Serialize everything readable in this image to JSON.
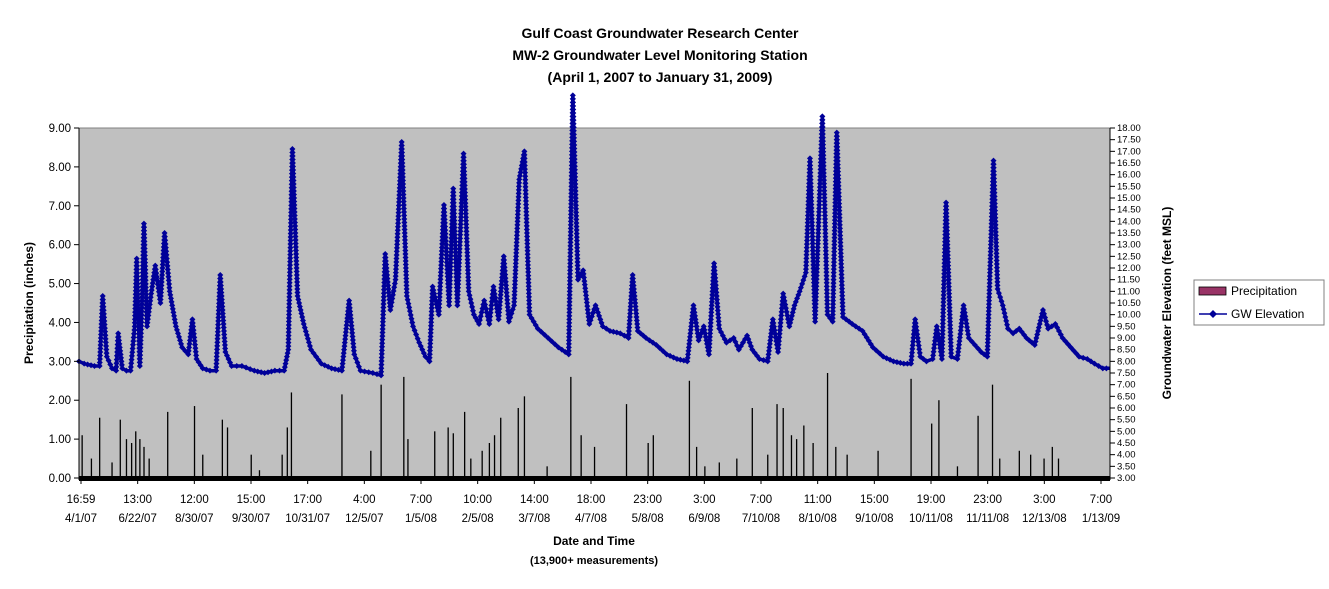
{
  "chart_data": {
    "type": "line",
    "title_lines": [
      "Gulf Coast Groundwater Research Center",
      "MW-2 Groundwater Level Monitoring Station",
      "(April 1, 2007 to January 31, 2009)"
    ],
    "xlabel": "Date and Time",
    "xlabel_sub": "(13,900+ measurements)",
    "ylabel_left": "Precipitation (inches)",
    "ylabel_right": "Groundwater Elevation (feet MSL)",
    "ylim_left": [
      0,
      9
    ],
    "ylim_right": [
      3,
      18
    ],
    "y_ticks_left": [
      "0.00",
      "1.00",
      "2.00",
      "3.00",
      "4.00",
      "5.00",
      "6.00",
      "7.00",
      "8.00",
      "9.00"
    ],
    "y_ticks_right": [
      "3.00",
      "3.50",
      "4.00",
      "4.50",
      "5.00",
      "5.50",
      "6.00",
      "6.50",
      "7.00",
      "7.50",
      "8.00",
      "8.50",
      "9.00",
      "9.50",
      "10.00",
      "10.50",
      "11.00",
      "11.50",
      "12.00",
      "12.50",
      "13.00",
      "13.50",
      "14.00",
      "14.50",
      "15.00",
      "15.50",
      "16.00",
      "16.50",
      "17.00",
      "17.50",
      "18.00"
    ],
    "x_ticks": [
      {
        "time": "16:59",
        "date": "4/1/07"
      },
      {
        "time": "13:00",
        "date": "6/22/07"
      },
      {
        "time": "12:00",
        "date": "8/30/07"
      },
      {
        "time": "15:00",
        "date": "9/30/07"
      },
      {
        "time": "17:00",
        "date": "10/31/07"
      },
      {
        "time": "4:00",
        "date": "12/5/07"
      },
      {
        "time": "7:00",
        "date": "1/5/08"
      },
      {
        "time": "10:00",
        "date": "2/5/08"
      },
      {
        "time": "14:00",
        "date": "3/7/08"
      },
      {
        "time": "18:00",
        "date": "4/7/08"
      },
      {
        "time": "23:00",
        "date": "5/8/08"
      },
      {
        "time": "3:00",
        "date": "6/9/08"
      },
      {
        "time": "7:00",
        "date": "7/10/08"
      },
      {
        "time": "11:00",
        "date": "8/10/08"
      },
      {
        "time": "15:00",
        "date": "9/10/08"
      },
      {
        "time": "19:00",
        "date": "10/11/08"
      },
      {
        "time": "23:00",
        "date": "11/11/08"
      },
      {
        "time": "3:00",
        "date": "12/13/08"
      },
      {
        "time": "7:00",
        "date": "1/13/09"
      }
    ],
    "legend_position": "right",
    "grid": false,
    "plot_background": "#c0c0c0",
    "series": [
      {
        "name": "Precipitation",
        "axis": "left",
        "kind": "bar",
        "color": "#000000",
        "legend_color": "#993366",
        "points": [
          [
            0.3,
            1.1
          ],
          [
            1.2,
            0.5
          ],
          [
            2.0,
            1.55
          ],
          [
            3.2,
            0.4
          ],
          [
            4.0,
            1.5
          ],
          [
            4.6,
            1.0
          ],
          [
            5.1,
            0.9
          ],
          [
            5.5,
            1.2
          ],
          [
            5.9,
            1.0
          ],
          [
            6.3,
            0.8
          ],
          [
            6.8,
            0.5
          ],
          [
            8.6,
            1.7
          ],
          [
            11.2,
            1.85
          ],
          [
            12.0,
            0.6
          ],
          [
            13.9,
            1.5
          ],
          [
            14.4,
            1.3
          ],
          [
            16.7,
            0.6
          ],
          [
            17.5,
            0.2
          ],
          [
            19.7,
            0.6
          ],
          [
            20.2,
            1.3
          ],
          [
            20.6,
            2.2
          ],
          [
            25.5,
            2.15
          ],
          [
            28.3,
            0.7
          ],
          [
            29.3,
            2.4
          ],
          [
            31.5,
            2.6
          ],
          [
            31.9,
            1.0
          ],
          [
            34.5,
            1.2
          ],
          [
            35.8,
            1.3
          ],
          [
            36.3,
            1.15
          ],
          [
            37.4,
            1.7
          ],
          [
            38.0,
            0.5
          ],
          [
            39.1,
            0.7
          ],
          [
            39.8,
            0.9
          ],
          [
            40.3,
            1.1
          ],
          [
            40.9,
            1.55
          ],
          [
            42.6,
            1.8
          ],
          [
            43.2,
            2.1
          ],
          [
            45.4,
            0.3
          ],
          [
            47.7,
            2.6
          ],
          [
            48.7,
            1.1
          ],
          [
            50.0,
            0.8
          ],
          [
            53.1,
            1.9
          ],
          [
            55.2,
            0.9
          ],
          [
            55.7,
            1.1
          ],
          [
            59.2,
            2.5
          ],
          [
            59.9,
            0.8
          ],
          [
            60.7,
            0.3
          ],
          [
            62.1,
            0.4
          ],
          [
            63.8,
            0.5
          ],
          [
            65.3,
            1.8
          ],
          [
            66.8,
            0.6
          ],
          [
            67.7,
            1.9
          ],
          [
            68.3,
            1.8
          ],
          [
            69.1,
            1.1
          ],
          [
            69.6,
            1.0
          ],
          [
            70.3,
            1.35
          ],
          [
            71.2,
            0.9
          ],
          [
            72.6,
            2.7
          ],
          [
            73.4,
            0.8
          ],
          [
            74.5,
            0.6
          ],
          [
            77.5,
            0.7
          ],
          [
            80.7,
            2.55
          ],
          [
            82.7,
            1.4
          ],
          [
            83.4,
            2.0
          ],
          [
            85.2,
            0.3
          ],
          [
            87.2,
            1.6
          ],
          [
            88.6,
            2.4
          ],
          [
            89.3,
            0.5
          ],
          [
            91.2,
            0.7
          ],
          [
            92.3,
            0.6
          ],
          [
            93.6,
            0.5
          ],
          [
            94.4,
            0.8
          ],
          [
            95.0,
            0.5
          ]
        ]
      },
      {
        "name": "GW Elevation",
        "axis": "right",
        "kind": "line",
        "color": "#000099",
        "points": [
          [
            0,
            8.0
          ],
          [
            0.5,
            7.9
          ],
          [
            1.5,
            7.8
          ],
          [
            2.0,
            7.8
          ],
          [
            2.3,
            10.8
          ],
          [
            2.7,
            8.2
          ],
          [
            3.2,
            7.7
          ],
          [
            3.6,
            7.6
          ],
          [
            3.8,
            9.2
          ],
          [
            4.2,
            7.7
          ],
          [
            4.6,
            7.6
          ],
          [
            5.0,
            7.6
          ],
          [
            5.4,
            9.5
          ],
          [
            5.6,
            12.4
          ],
          [
            5.9,
            7.8
          ],
          [
            6.1,
            10.3
          ],
          [
            6.3,
            13.9
          ],
          [
            6.6,
            9.5
          ],
          [
            7.0,
            10.9
          ],
          [
            7.4,
            12.1
          ],
          [
            7.9,
            10.5
          ],
          [
            8.3,
            13.5
          ],
          [
            8.8,
            11.0
          ],
          [
            9.4,
            9.5
          ],
          [
            10.0,
            8.6
          ],
          [
            10.6,
            8.3
          ],
          [
            11.0,
            9.8
          ],
          [
            11.4,
            8.1
          ],
          [
            12.0,
            7.7
          ],
          [
            12.7,
            7.6
          ],
          [
            13.3,
            7.6
          ],
          [
            13.7,
            11.7
          ],
          [
            14.2,
            8.4
          ],
          [
            14.8,
            7.8
          ],
          [
            15.8,
            7.8
          ],
          [
            17.0,
            7.6
          ],
          [
            18.0,
            7.5
          ],
          [
            19.0,
            7.6
          ],
          [
            19.9,
            7.6
          ],
          [
            20.3,
            8.5
          ],
          [
            20.7,
            17.1
          ],
          [
            21.2,
            10.8
          ],
          [
            21.8,
            9.6
          ],
          [
            22.5,
            8.5
          ],
          [
            23.5,
            7.9
          ],
          [
            24.5,
            7.7
          ],
          [
            25.5,
            7.6
          ],
          [
            26.2,
            10.6
          ],
          [
            26.7,
            8.3
          ],
          [
            27.3,
            7.6
          ],
          [
            28.5,
            7.5
          ],
          [
            29.3,
            7.4
          ],
          [
            29.7,
            12.6
          ],
          [
            30.2,
            10.2
          ],
          [
            30.7,
            11.5
          ],
          [
            31.3,
            17.4
          ],
          [
            31.8,
            10.8
          ],
          [
            32.4,
            9.5
          ],
          [
            33.0,
            8.8
          ],
          [
            33.6,
            8.2
          ],
          [
            34.0,
            8.0
          ],
          [
            34.3,
            11.2
          ],
          [
            34.9,
            10.0
          ],
          [
            35.4,
            14.7
          ],
          [
            35.9,
            10.4
          ],
          [
            36.3,
            15.4
          ],
          [
            36.7,
            10.4
          ],
          [
            37.3,
            16.9
          ],
          [
            37.8,
            11.0
          ],
          [
            38.3,
            10.0
          ],
          [
            38.8,
            9.6
          ],
          [
            39.3,
            10.6
          ],
          [
            39.8,
            9.6
          ],
          [
            40.2,
            11.2
          ],
          [
            40.7,
            9.8
          ],
          [
            41.2,
            12.5
          ],
          [
            41.7,
            9.7
          ],
          [
            42.2,
            10.4
          ],
          [
            42.7,
            15.8
          ],
          [
            43.2,
            17.0
          ],
          [
            43.7,
            10.0
          ],
          [
            44.5,
            9.4
          ],
          [
            45.5,
            9.0
          ],
          [
            46.5,
            8.6
          ],
          [
            47.5,
            8.3
          ],
          [
            47.9,
            19.4
          ],
          [
            48.4,
            11.5
          ],
          [
            48.9,
            11.9
          ],
          [
            49.5,
            9.6
          ],
          [
            50.1,
            10.4
          ],
          [
            50.8,
            9.5
          ],
          [
            51.5,
            9.3
          ],
          [
            52.5,
            9.2
          ],
          [
            53.3,
            9.0
          ],
          [
            53.7,
            11.7
          ],
          [
            54.2,
            9.3
          ],
          [
            55.0,
            9.0
          ],
          [
            56.0,
            8.7
          ],
          [
            57.0,
            8.3
          ],
          [
            58.0,
            8.1
          ],
          [
            59.0,
            8.0
          ],
          [
            59.6,
            10.4
          ],
          [
            60.1,
            8.9
          ],
          [
            60.6,
            9.5
          ],
          [
            61.1,
            8.3
          ],
          [
            61.6,
            12.2
          ],
          [
            62.1,
            9.4
          ],
          [
            62.8,
            8.8
          ],
          [
            63.5,
            9.0
          ],
          [
            64.0,
            8.5
          ],
          [
            64.8,
            9.1
          ],
          [
            65.3,
            8.5
          ],
          [
            66.0,
            8.1
          ],
          [
            66.8,
            8.0
          ],
          [
            67.3,
            9.8
          ],
          [
            67.8,
            8.4
          ],
          [
            68.3,
            10.9
          ],
          [
            68.9,
            9.5
          ],
          [
            69.4,
            10.4
          ],
          [
            69.9,
            11.0
          ],
          [
            70.5,
            11.8
          ],
          [
            70.9,
            16.7
          ],
          [
            71.4,
            9.7
          ],
          [
            72.1,
            18.5
          ],
          [
            72.6,
            10.0
          ],
          [
            73.1,
            9.7
          ],
          [
            73.5,
            17.8
          ],
          [
            74.1,
            9.9
          ],
          [
            75.0,
            9.6
          ],
          [
            76.0,
            9.3
          ],
          [
            77.0,
            8.6
          ],
          [
            78.0,
            8.2
          ],
          [
            79.0,
            8.0
          ],
          [
            80.0,
            7.9
          ],
          [
            80.7,
            7.9
          ],
          [
            81.1,
            9.8
          ],
          [
            81.6,
            8.2
          ],
          [
            82.2,
            8.0
          ],
          [
            82.8,
            8.1
          ],
          [
            83.2,
            9.5
          ],
          [
            83.7,
            8.1
          ],
          [
            84.1,
            14.8
          ],
          [
            84.6,
            8.2
          ],
          [
            85.2,
            8.1
          ],
          [
            85.8,
            10.4
          ],
          [
            86.3,
            9.0
          ],
          [
            86.9,
            8.7
          ],
          [
            87.5,
            8.4
          ],
          [
            88.1,
            8.2
          ],
          [
            88.7,
            16.6
          ],
          [
            89.1,
            11.1
          ],
          [
            89.6,
            10.4
          ],
          [
            90.1,
            9.4
          ],
          [
            90.6,
            9.2
          ],
          [
            91.2,
            9.4
          ],
          [
            91.9,
            9.0
          ],
          [
            92.7,
            8.7
          ],
          [
            93.5,
            10.2
          ],
          [
            94.0,
            9.4
          ],
          [
            94.7,
            9.6
          ],
          [
            95.4,
            9.0
          ],
          [
            96.2,
            8.6
          ],
          [
            97.0,
            8.2
          ],
          [
            97.8,
            8.1
          ],
          [
            98.5,
            7.9
          ],
          [
            99.3,
            7.7
          ],
          [
            100,
            7.7
          ]
        ]
      }
    ]
  }
}
